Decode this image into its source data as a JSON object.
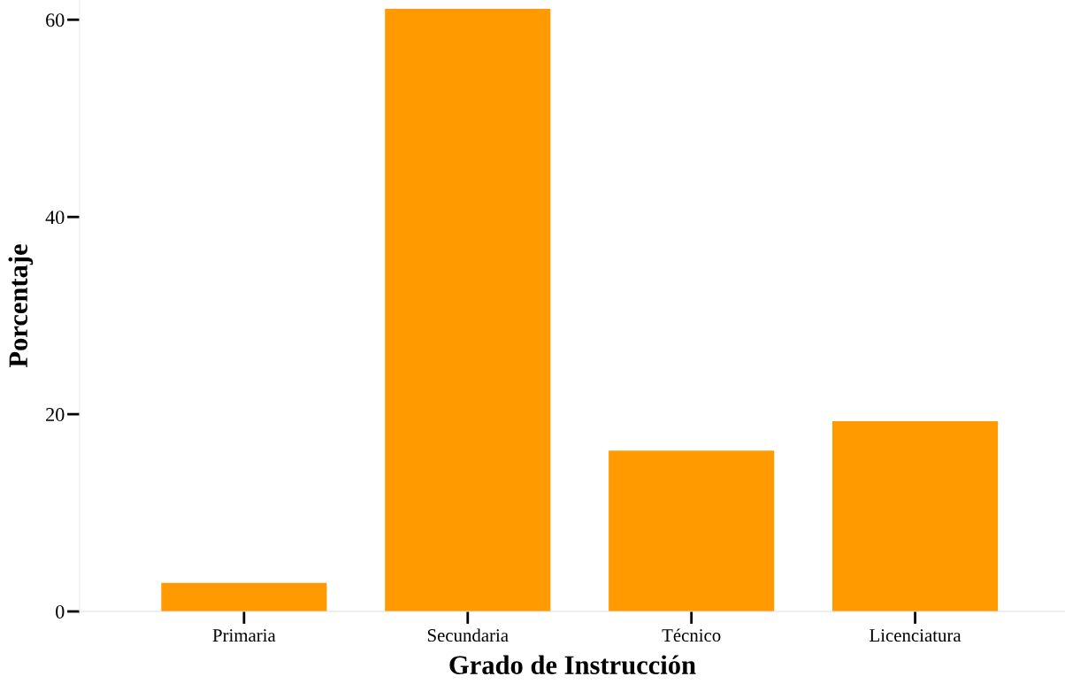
{
  "chart_data": {
    "type": "bar",
    "xlabel": "Grado de Instrucción",
    "ylabel": "Porcentaje",
    "categories": [
      "Primaria",
      "Secundaria",
      "Técnico",
      "Licenciatura"
    ],
    "values": [
      2.9,
      61.1,
      16.3,
      19.3
    ],
    "color": "#ff9b00",
    "ylim": [
      0,
      62
    ],
    "yticks": [
      0,
      20,
      40,
      60
    ],
    "grid": false,
    "legend": false
  }
}
